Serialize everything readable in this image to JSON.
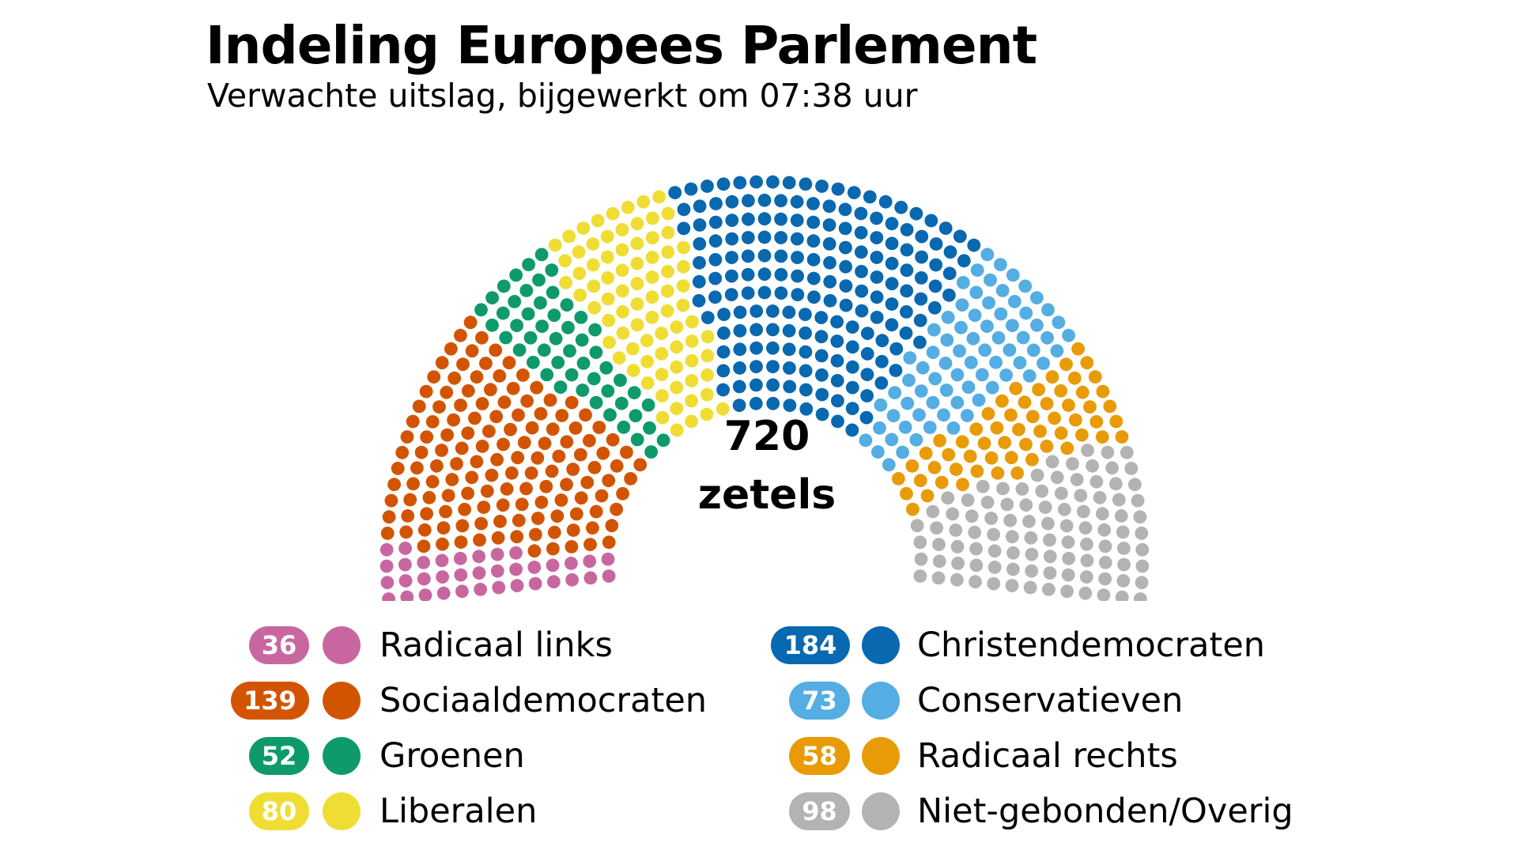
{
  "chart_data": {
    "type": "parliament",
    "title": "Indeling Europees Parlement",
    "subtitle": "Verwachte uitslag, bijgewerkt om 07:38 uur",
    "total_seats": "720",
    "total_label": "zetels",
    "series": [
      {
        "name": "Radicaal links",
        "value": 36,
        "color": "#c8679f"
      },
      {
        "name": "Sociaaldemocraten",
        "value": 139,
        "color": "#d35400"
      },
      {
        "name": "Groenen",
        "value": 52,
        "color": "#0e9a6b"
      },
      {
        "name": "Liberalen",
        "value": 80,
        "color": "#f0dd34"
      },
      {
        "name": "Christendemocraten",
        "value": 184,
        "color": "#0868b0"
      },
      {
        "name": "Conservatieven",
        "value": 73,
        "color": "#54ade3"
      },
      {
        "name": "Radicaal rechts",
        "value": 58,
        "color": "#e89b07"
      },
      {
        "name": "Niet-gebonden/Overig",
        "value": 98,
        "color": "#b3b3b3"
      }
    ]
  },
  "legend": {
    "left": [
      {
        "count": "36",
        "label": "Radicaal links",
        "color": "#c8679f"
      },
      {
        "count": "139",
        "label": "Sociaaldemocraten",
        "color": "#d35400"
      },
      {
        "count": "52",
        "label": "Groenen",
        "color": "#0e9a6b"
      },
      {
        "count": "80",
        "label": "Liberalen",
        "color": "#f0dd34"
      }
    ],
    "right": [
      {
        "count": "184",
        "label": "Christendemocraten",
        "color": "#0868b0"
      },
      {
        "count": "73",
        "label": "Conservatieven",
        "color": "#54ade3"
      },
      {
        "count": "58",
        "label": "Radicaal rechts",
        "color": "#e89b07"
      },
      {
        "count": "98",
        "label": "Niet-gebonden/Overig",
        "color": "#b3b3b3"
      }
    ]
  }
}
